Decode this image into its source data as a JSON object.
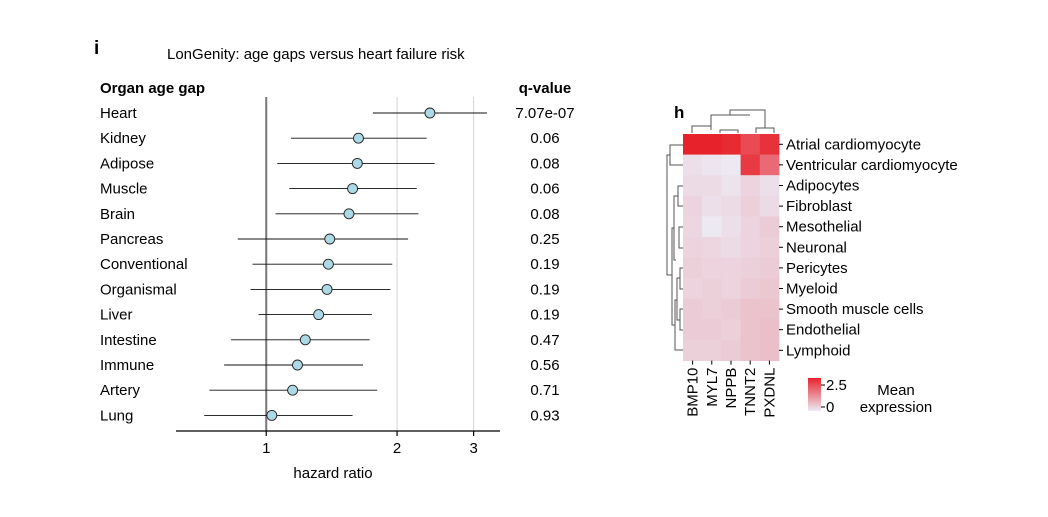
{
  "chart_data": [
    {
      "type": "scatter",
      "panel_label": "i",
      "title": "LonGenity: age gaps versus heart failure risk",
      "row_header": "Organ age gap",
      "qvalue_header": "q-value",
      "xlabel": "hazard ratio",
      "x_scale": "log",
      "xlim": [
        0.62,
        3.45
      ],
      "xticks": [
        1,
        2,
        3
      ],
      "xtick_labels": [
        "1",
        "2",
        "3"
      ],
      "reference_line": 1,
      "grid": "vertical lines at 2 and 3",
      "marker_color": "#add8e6",
      "rows": [
        {
          "label": "Heart",
          "hr": 2.38,
          "ci_low": 1.76,
          "ci_high": 3.22,
          "q": "7.07e-07"
        },
        {
          "label": "Kidney",
          "hr": 1.63,
          "ci_low": 1.14,
          "ci_high": 2.34,
          "q": "0.06"
        },
        {
          "label": "Adipose",
          "hr": 1.62,
          "ci_low": 1.06,
          "ci_high": 2.44,
          "q": "0.08"
        },
        {
          "label": "Muscle",
          "hr": 1.58,
          "ci_low": 1.13,
          "ci_high": 2.22,
          "q": "0.06"
        },
        {
          "label": "Brain",
          "hr": 1.55,
          "ci_low": 1.05,
          "ci_high": 2.24,
          "q": "0.08"
        },
        {
          "label": "Pancreas",
          "hr": 1.4,
          "ci_low": 0.86,
          "ci_high": 2.12,
          "q": "0.25"
        },
        {
          "label": "Conventional",
          "hr": 1.39,
          "ci_low": 0.93,
          "ci_high": 1.95,
          "q": "0.19"
        },
        {
          "label": "Organismal",
          "hr": 1.38,
          "ci_low": 0.92,
          "ci_high": 1.93,
          "q": "0.19"
        },
        {
          "label": "Liver",
          "hr": 1.32,
          "ci_low": 0.96,
          "ci_high": 1.75,
          "q": "0.19"
        },
        {
          "label": "Intestine",
          "hr": 1.23,
          "ci_low": 0.83,
          "ci_high": 1.73,
          "q": "0.47"
        },
        {
          "label": "Immune",
          "hr": 1.18,
          "ci_low": 0.8,
          "ci_high": 1.67,
          "q": "0.56"
        },
        {
          "label": "Artery",
          "hr": 1.15,
          "ci_low": 0.74,
          "ci_high": 1.8,
          "q": "0.71"
        },
        {
          "label": "Lung",
          "hr": 1.03,
          "ci_low": 0.72,
          "ci_high": 1.58,
          "q": "0.93"
        }
      ]
    },
    {
      "type": "heatmap",
      "panel_label": "h",
      "rows": [
        "Atrial cardiomyocyte",
        "Ventricular cardiomyocyte",
        "Adipocytes",
        "Fibroblast",
        "Mesothelial",
        "Neuronal",
        "Pericytes",
        "Myeloid",
        "Smooth muscle cells",
        "Endothelial",
        "Lymphoid"
      ],
      "columns": [
        "BMP10",
        "MYL7",
        "NPPB",
        "TNNT2",
        "PXDNL"
      ],
      "values": [
        [
          2.5,
          2.5,
          2.4,
          2.0,
          2.3
        ],
        [
          0.15,
          0.08,
          0.02,
          2.2,
          1.6
        ],
        [
          0.2,
          0.2,
          0.1,
          0.3,
          0.15
        ],
        [
          0.3,
          0.15,
          0.2,
          0.35,
          0.2
        ],
        [
          0.25,
          0.02,
          0.15,
          0.3,
          0.4
        ],
        [
          0.3,
          0.25,
          0.2,
          0.3,
          0.35
        ],
        [
          0.35,
          0.3,
          0.3,
          0.35,
          0.4
        ],
        [
          0.3,
          0.35,
          0.3,
          0.4,
          0.45
        ],
        [
          0.4,
          0.35,
          0.4,
          0.5,
          0.5
        ],
        [
          0.4,
          0.4,
          0.35,
          0.5,
          0.55
        ],
        [
          0.35,
          0.35,
          0.4,
          0.5,
          0.55
        ]
      ],
      "colorbar": {
        "min": 0,
        "max": 2.5,
        "tick_labels": [
          "2.5",
          "0"
        ],
        "label_lines": [
          "Mean",
          "expression"
        ],
        "colors": [
          "#ecebf5",
          "#e8222b"
        ]
      },
      "row_dendrogram": true,
      "column_dendrogram": true
    }
  ]
}
